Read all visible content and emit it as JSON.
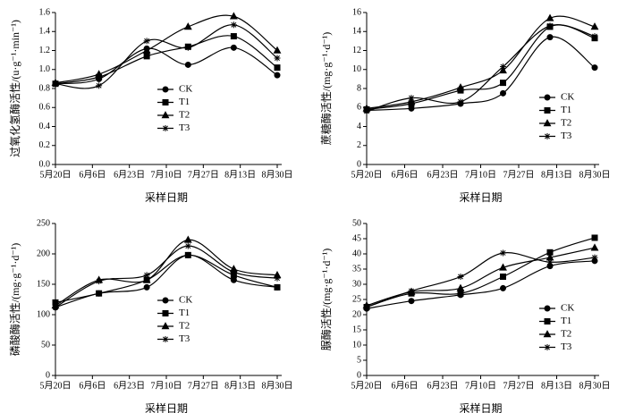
{
  "chart_data": [
    {
      "type": "line",
      "ylabel": "过氧化氢酶活性/(u·g⁻¹·min⁻¹)",
      "xlabel": "采样日期",
      "x": [
        0,
        20,
        42,
        61,
        82,
        102
      ],
      "xlim": [
        0,
        102
      ],
      "xticks": [
        {
          "value": 0,
          "label": "5月20日"
        },
        {
          "value": 17,
          "label": "6月6日"
        },
        {
          "value": 34,
          "label": "6月23日"
        },
        {
          "value": 51,
          "label": "7月10日"
        },
        {
          "value": 68,
          "label": "7月27日"
        },
        {
          "value": 85,
          "label": "8月13日"
        },
        {
          "value": 102,
          "label": "8月30日"
        }
      ],
      "ylim": [
        0,
        1.6
      ],
      "yticks": [
        {
          "value": 0,
          "label": "0.0"
        },
        {
          "value": 0.2,
          "label": "0.2"
        },
        {
          "value": 0.4,
          "label": "0.4"
        },
        {
          "value": 0.6,
          "label": "0.6"
        },
        {
          "value": 0.8,
          "label": "0.8"
        },
        {
          "value": 1.0,
          "label": "1.0"
        },
        {
          "value": 1.2,
          "label": "1.2"
        },
        {
          "value": 1.4,
          "label": "1.4"
        },
        {
          "value": 1.6,
          "label": "1.6"
        }
      ],
      "legend": "center",
      "series": [
        {
          "name": "CK",
          "color": "#000000",
          "marker": "circle",
          "values": [
            0.85,
            0.9,
            1.22,
            1.05,
            1.23,
            0.94
          ]
        },
        {
          "name": "T1",
          "color": "#000000",
          "marker": "square",
          "values": [
            0.85,
            0.92,
            1.14,
            1.24,
            1.35,
            1.02
          ]
        },
        {
          "name": "T2",
          "color": "#000000",
          "marker": "triangle",
          "values": [
            0.86,
            0.95,
            1.2,
            1.45,
            1.56,
            1.2
          ]
        },
        {
          "name": "T3",
          "color": "#000000",
          "marker": "star",
          "values": [
            0.85,
            0.83,
            1.3,
            1.23,
            1.47,
            1.12
          ]
        }
      ]
    },
    {
      "type": "line",
      "ylabel": "蔗糖酶活性/(mg·g⁻¹·d⁻¹)",
      "xlabel": "采样日期",
      "x": [
        0,
        20,
        42,
        61,
        82,
        102
      ],
      "xlim": [
        0,
        102
      ],
      "xticks": [
        {
          "value": 0,
          "label": "5月20日"
        },
        {
          "value": 17,
          "label": "6月6日"
        },
        {
          "value": 34,
          "label": "6月23日"
        },
        {
          "value": 51,
          "label": "7月10日"
        },
        {
          "value": 68,
          "label": "7月27日"
        },
        {
          "value": 85,
          "label": "8月13日"
        },
        {
          "value": 102,
          "label": "8月30日"
        }
      ],
      "ylim": [
        0,
        16
      ],
      "yticks": [
        0,
        2,
        4,
        6,
        8,
        10,
        12,
        14,
        16
      ],
      "legend": "right",
      "series": [
        {
          "name": "CK",
          "color": "#000000",
          "marker": "circle",
          "values": [
            5.7,
            5.9,
            6.4,
            7.5,
            13.4,
            10.2
          ]
        },
        {
          "name": "T1",
          "color": "#000000",
          "marker": "square",
          "values": [
            5.8,
            6.4,
            7.8,
            8.6,
            14.5,
            13.3
          ]
        },
        {
          "name": "T2",
          "color": "#000000",
          "marker": "triangle",
          "values": [
            5.9,
            6.6,
            8.1,
            9.9,
            15.4,
            14.5
          ]
        },
        {
          "name": "T3",
          "color": "#000000",
          "marker": "star",
          "values": [
            5.6,
            7.0,
            6.6,
            10.3,
            14.6,
            13.5
          ]
        }
      ]
    },
    {
      "type": "line",
      "ylabel": "磷酸酶活性/(mg·g⁻¹·d⁻¹)",
      "xlabel": "采样日期",
      "x": [
        0,
        20,
        42,
        61,
        82,
        102
      ],
      "xlim": [
        0,
        102
      ],
      "xticks": [
        {
          "value": 0,
          "label": "5月20日"
        },
        {
          "value": 17,
          "label": "6月6日"
        },
        {
          "value": 34,
          "label": "6月23日"
        },
        {
          "value": 51,
          "label": "7月10日"
        },
        {
          "value": 68,
          "label": "7月27日"
        },
        {
          "value": 85,
          "label": "8月13日"
        },
        {
          "value": 102,
          "label": "8月30日"
        }
      ],
      "ylim": [
        0,
        250
      ],
      "yticks": [
        0,
        50,
        100,
        150,
        200,
        250
      ],
      "legend": "center",
      "series": [
        {
          "name": "CK",
          "color": "#000000",
          "marker": "circle",
          "values": [
            112,
            135,
            145,
            198,
            157,
            145
          ]
        },
        {
          "name": "T1",
          "color": "#000000",
          "marker": "square",
          "values": [
            120,
            135,
            157,
            198,
            165,
            145
          ]
        },
        {
          "name": "T2",
          "color": "#000000",
          "marker": "triangle",
          "values": [
            115,
            157,
            157,
            223,
            175,
            165
          ]
        },
        {
          "name": "T3",
          "color": "#000000",
          "marker": "star",
          "values": [
            112,
            155,
            165,
            213,
            170,
            160
          ]
        }
      ]
    },
    {
      "type": "line",
      "ylabel": "脲酶活性/(mg·g⁻¹·d⁻¹)",
      "xlabel": "采样日期",
      "x": [
        0,
        20,
        42,
        61,
        82,
        102
      ],
      "xlim": [
        0,
        102
      ],
      "xticks": [
        {
          "value": 0,
          "label": "5月20日"
        },
        {
          "value": 17,
          "label": "6月6日"
        },
        {
          "value": 34,
          "label": "6月23日"
        },
        {
          "value": 51,
          "label": "7月10日"
        },
        {
          "value": 68,
          "label": "7月27日"
        },
        {
          "value": 85,
          "label": "8月13日"
        },
        {
          "value": 102,
          "label": "8月30日"
        }
      ],
      "ylim": [
        0,
        50
      ],
      "yticks": [
        0,
        5,
        10,
        15,
        20,
        25,
        30,
        35,
        40,
        45,
        50
      ],
      "legend": "right",
      "series": [
        {
          "name": "CK",
          "color": "#000000",
          "marker": "circle",
          "values": [
            22,
            24.5,
            26.5,
            28.7,
            36,
            37.7
          ]
        },
        {
          "name": "T1",
          "color": "#000000",
          "marker": "square",
          "values": [
            22.5,
            27,
            27,
            32.5,
            40.5,
            45.3
          ]
        },
        {
          "name": "T2",
          "color": "#000000",
          "marker": "triangle",
          "values": [
            23,
            27.5,
            28.7,
            35.5,
            38.8,
            42
          ]
        },
        {
          "name": "T3",
          "color": "#000000",
          "marker": "star",
          "values": [
            22.5,
            27.8,
            32.5,
            40.3,
            37.3,
            38.8
          ]
        }
      ]
    }
  ]
}
